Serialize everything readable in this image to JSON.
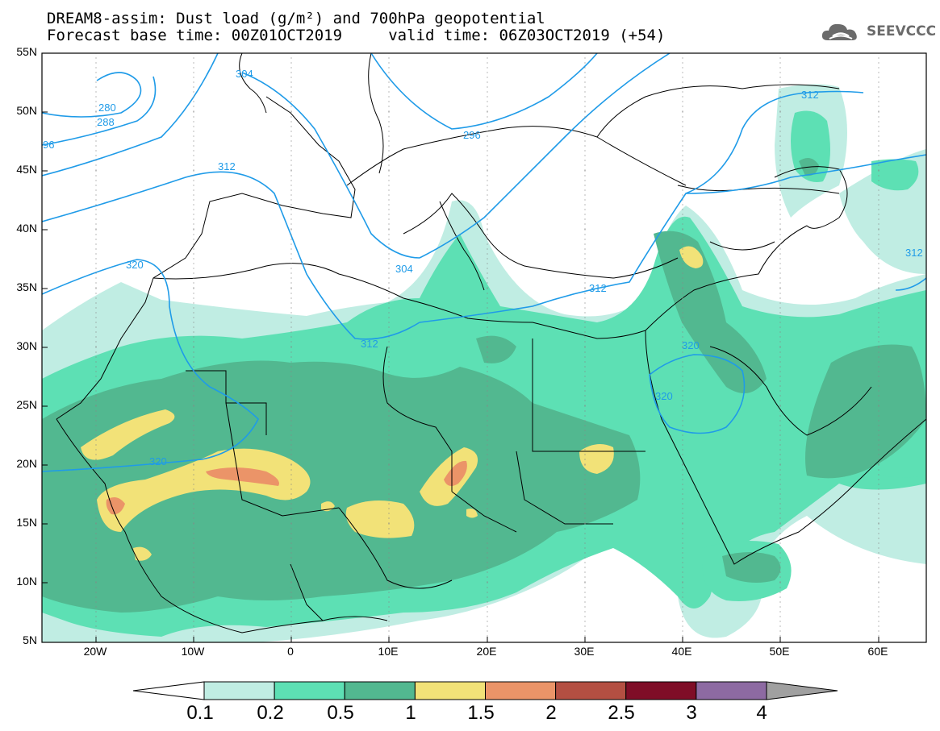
{
  "title_line1": "DREAM8-assim: Dust load (g/m²) and 700hPa geopotential",
  "title_line2": "Forecast base time: 00Z01OCT2019     valid time: 06Z03OCT2019 (+54)",
  "logo_text": "SEEVCCC",
  "lat_labels": [
    "55N",
    "50N",
    "45N",
    "40N",
    "35N",
    "30N",
    "25N",
    "20N",
    "15N",
    "10N",
    "5N"
  ],
  "lon_labels": [
    "20W",
    "10W",
    "0",
    "10E",
    "20E",
    "30E",
    "40E",
    "50E",
    "60E"
  ],
  "contour_labels": [
    "280",
    "288",
    "96",
    "304",
    "296",
    "312",
    "312",
    "304",
    "312",
    "320",
    "312",
    "320",
    "312",
    "320",
    "320"
  ],
  "colorbar": {
    "labels": [
      "0.1",
      "0.2",
      "0.5",
      "1",
      "1.5",
      "2",
      "2.5",
      "3",
      "4"
    ],
    "colors": [
      "#c0ede3",
      "#5de0b4",
      "#52b890",
      "#f2e278",
      "#eb9468",
      "#b44f42",
      "#7f0d27",
      "#8d6aa2"
    ]
  },
  "legend_colors": {
    "land_outline": "#000000",
    "geopotential_contour": "#1f9be8"
  }
}
